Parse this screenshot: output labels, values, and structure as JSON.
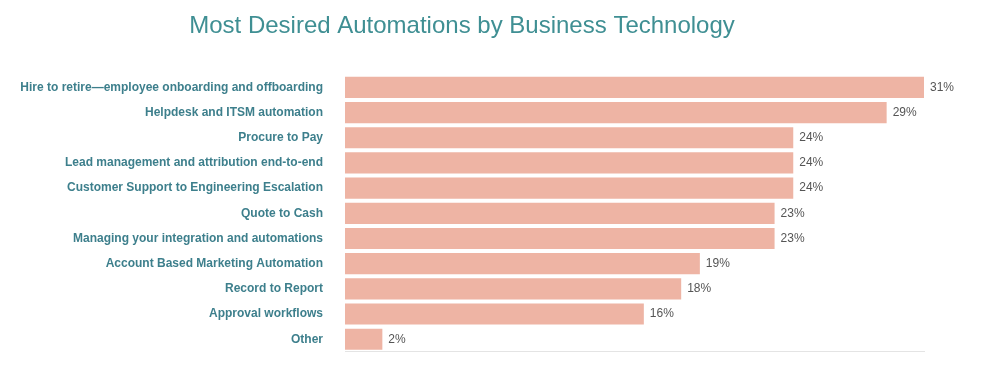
{
  "chart_data": {
    "type": "bar",
    "title": "Most Desired Automations by Business Technology",
    "categories": [
      "Hire to retire—employee onboarding and offboarding",
      "Helpdesk and ITSM automation",
      "Procure to Pay",
      "Lead management and attribution end-to-end",
      "Customer Support to Engineering Escalation",
      "Quote to Cash",
      "Managing your integration and automations",
      "Account Based Marketing Automation",
      "Record to Report",
      "Approval workflows",
      "Other"
    ],
    "values": [
      31,
      29,
      24,
      24,
      24,
      23,
      23,
      19,
      18,
      16,
      2
    ],
    "value_labels": [
      "31%",
      "29%",
      "24%",
      "24%",
      "24%",
      "23%",
      "23%",
      "19%",
      "18%",
      "16%",
      "2%"
    ],
    "color": "#eeb4a4",
    "xlim": [
      0,
      31
    ],
    "orientation": "horizontal",
    "data_labels": true,
    "grid": false,
    "tick_labels": "y"
  }
}
